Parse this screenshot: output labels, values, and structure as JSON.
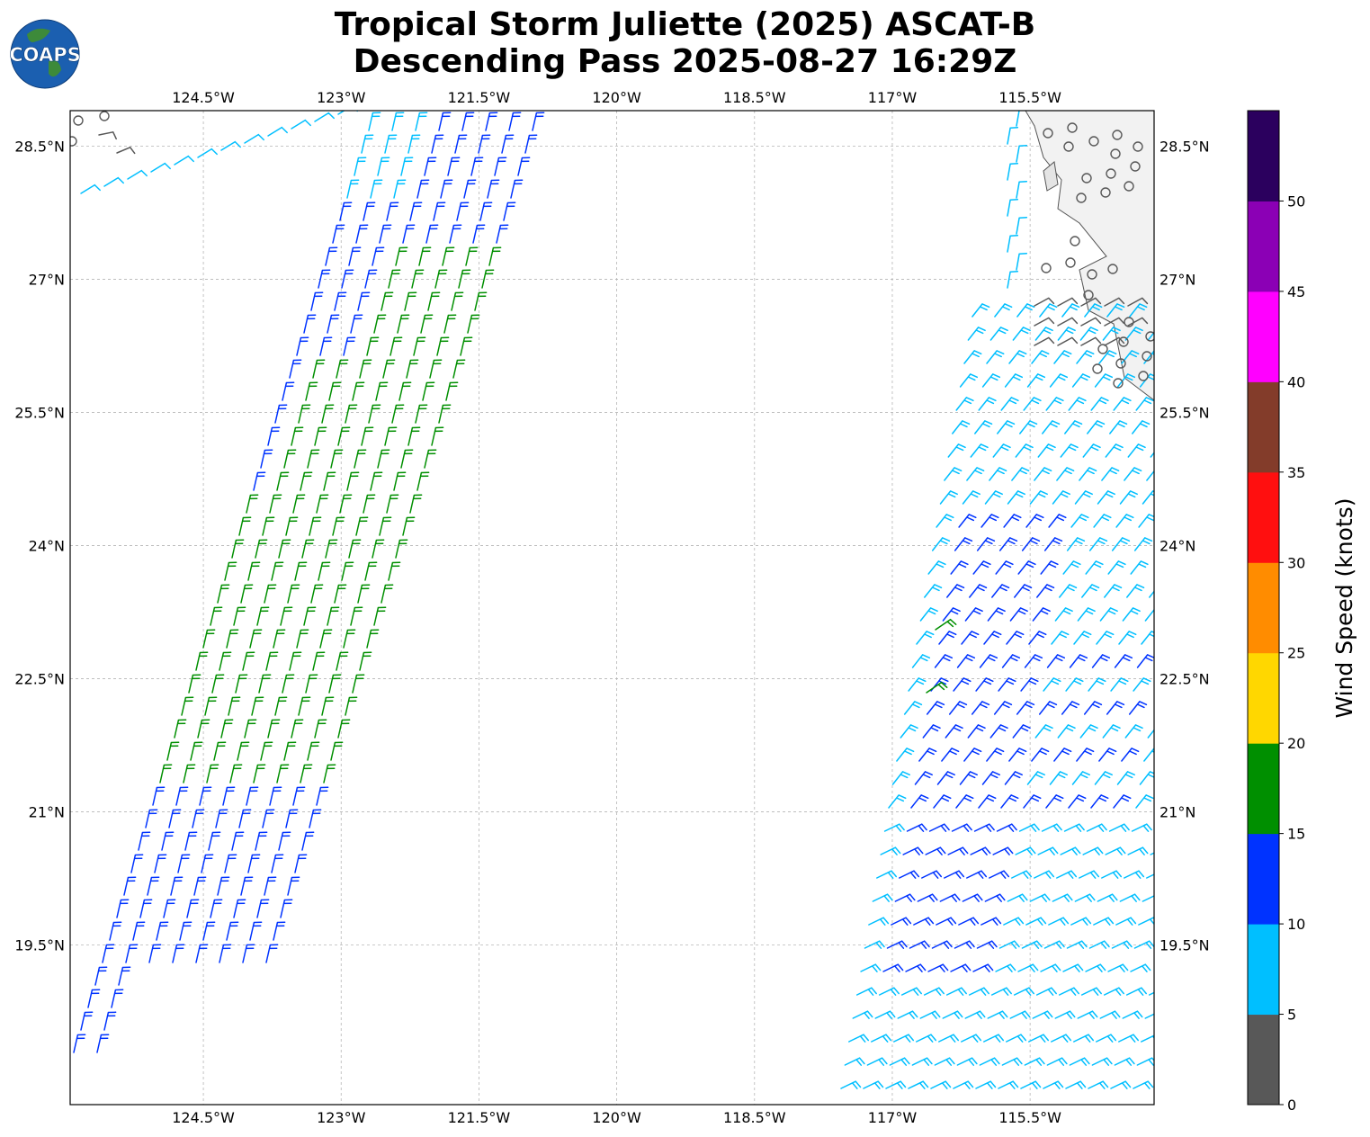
{
  "title": {
    "line1": "Tropical Storm Juliette (2025) ASCAT-B",
    "line2": "Descending Pass 2025-08-27 16:29Z"
  },
  "logo": {
    "text": "COAPS"
  },
  "map": {
    "lon_range": [
      -125.95,
      -114.15
    ],
    "lat_range": [
      17.7,
      28.9
    ],
    "lon_ticks": [
      "124.5°W",
      "123°W",
      "121.5°W",
      "120°W",
      "118.5°W",
      "117°W",
      "115.5°W"
    ],
    "lon_tick_values": [
      -124.5,
      -123,
      -121.5,
      -120,
      -118.5,
      -117,
      -115.5
    ],
    "lat_ticks": [
      "28.5°N",
      "27°N",
      "25.5°N",
      "24°N",
      "22.5°N",
      "21°N",
      "19.5°N"
    ],
    "lat_tick_values": [
      28.5,
      27,
      25.5,
      24,
      22.5,
      21,
      19.5
    ],
    "gridlines": true
  },
  "colorbar": {
    "label": "Wind Speed (knots)",
    "tick_labels": [
      "0",
      "5",
      "10",
      "15",
      "20",
      "25",
      "30",
      "35",
      "40",
      "45",
      "50"
    ],
    "bins": [
      {
        "min": 0,
        "max": 5,
        "color": "#585858"
      },
      {
        "min": 5,
        "max": 10,
        "color": "#00bfff"
      },
      {
        "min": 10,
        "max": 15,
        "color": "#0033ff"
      },
      {
        "min": 15,
        "max": 20,
        "color": "#008f00"
      },
      {
        "min": 20,
        "max": 25,
        "color": "#ffd700"
      },
      {
        "min": 25,
        "max": 30,
        "color": "#ff8c00"
      },
      {
        "min": 30,
        "max": 35,
        "color": "#ff0f0f"
      },
      {
        "min": 35,
        "max": 40,
        "color": "#833c2a"
      },
      {
        "min": 40,
        "max": 45,
        "color": "#ff00ff"
      },
      {
        "min": 45,
        "max": 50,
        "color": "#8b00b5"
      },
      {
        "min": 50,
        "max": 55,
        "color": "#2b005e"
      }
    ]
  }
}
